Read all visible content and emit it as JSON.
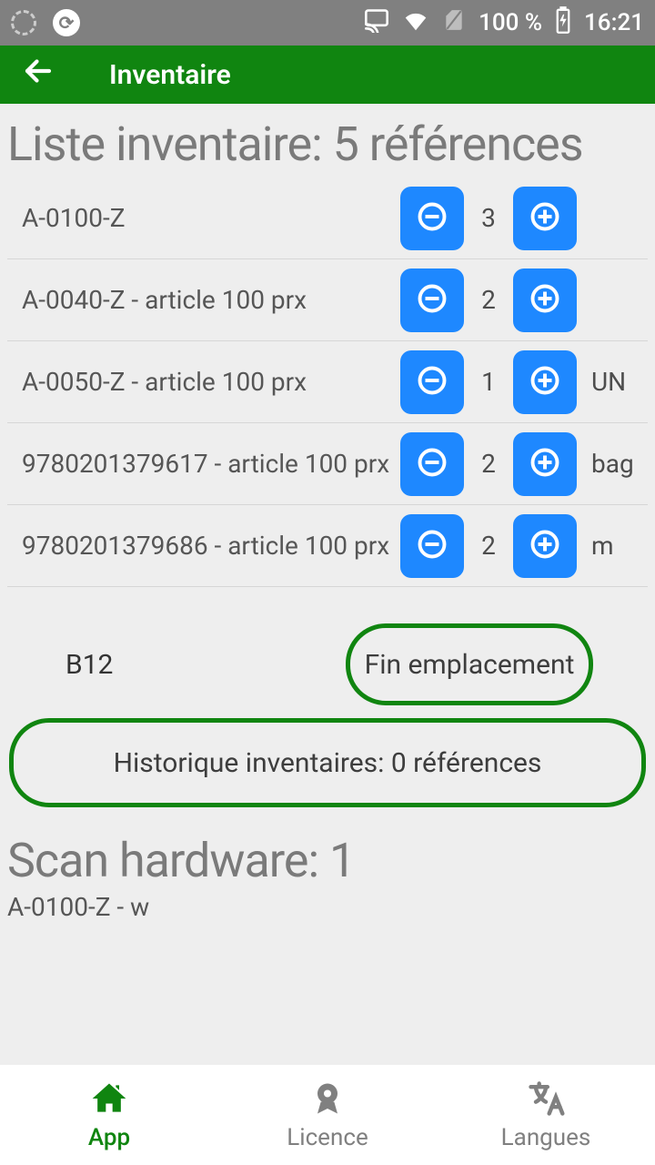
{
  "status_bar": {
    "battery_text": "100 %",
    "time": "16:21"
  },
  "app_bar": {
    "title": "Inventaire"
  },
  "list": {
    "title": "Liste inventaire: 5 références",
    "items": [
      {
        "label": "A-0100-Z",
        "qty": "3",
        "unit": ""
      },
      {
        "label": "A-0040-Z - article 100 prx",
        "qty": "2",
        "unit": ""
      },
      {
        "label": "A-0050-Z - article 100 prx",
        "qty": "1",
        "unit": "UN"
      },
      {
        "label": "9780201379617 - article 100 prx",
        "qty": "2",
        "unit": "bag"
      },
      {
        "label": "9780201379686 - article 100 prx",
        "qty": "2",
        "unit": "m"
      }
    ]
  },
  "location": {
    "label": "B12",
    "end_button": "Fin emplacement"
  },
  "history_button": "Historique inventaires: 0 références",
  "scan": {
    "title": "Scan hardware: 1",
    "last": "A-0100-Z - w"
  },
  "nav": {
    "app": "App",
    "licence": "Licence",
    "langues": "Langues"
  },
  "colors": {
    "primary_green": "#108510",
    "button_blue": "#1e88ff",
    "text_gray": "#7a7a7a",
    "bg": "#eeeeee",
    "status_bg": "#808080"
  }
}
